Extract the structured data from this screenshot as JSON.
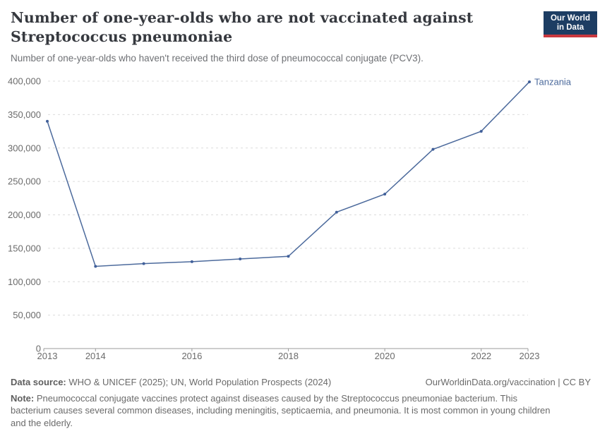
{
  "header": {
    "title_line1": "Number of one-year-olds who are not vaccinated against",
    "title_line2": "Streptococcus pneumoniae",
    "subtitle": "Number of one-year-olds who haven't received the third dose of pneumococcal conjugate (PCV3)."
  },
  "logo": {
    "line1": "Our World",
    "line2": "in Data"
  },
  "chart_data": {
    "type": "line",
    "title": "Number of one-year-olds who are not vaccinated against Streptococcus pneumoniae",
    "subtitle": "Number of one-year-olds who haven't received the third dose of pneumococcal conjugate (PCV3).",
    "xlabel": "",
    "ylabel": "",
    "xlim": [
      2013,
      2023
    ],
    "ylim": [
      0,
      400000
    ],
    "grid": "horizontal-dashed",
    "legend_position": "end-of-line-label",
    "series": [
      {
        "name": "Tanzania",
        "x": [
          2013,
          2014,
          2015,
          2016,
          2017,
          2018,
          2019,
          2020,
          2021,
          2022,
          2023
        ],
        "values": [
          340000,
          123000,
          127000,
          130000,
          134000,
          138000,
          204000,
          231000,
          298000,
          325000,
          399000
        ]
      }
    ],
    "x_axis": {
      "tick_label_years": [
        2013,
        2014,
        2016,
        2018,
        2020,
        2022,
        2023
      ],
      "tick_mark_years": [
        2014,
        2016,
        2018,
        2020,
        2022
      ]
    },
    "y_axis": {
      "ticks": [
        0,
        50000,
        100000,
        150000,
        200000,
        250000,
        300000,
        350000,
        400000
      ]
    },
    "colors": {
      "line": "#4c6a9c",
      "marker": "#41609a",
      "grid": "#dcdcdc",
      "axis": "#9b9b9b",
      "tick_text": "#6b6b6b",
      "logo_navy": "#1d3d63",
      "logo_red": "#c9383f"
    }
  },
  "footer": {
    "source_label": "Data source:",
    "source_text": " WHO & UNICEF (2025); UN, World Population Prospects (2024)",
    "link_text": "OurWorldinData.org/vaccination | CC BY",
    "note_label": "Note:",
    "note_text": " Pneumococcal conjugate vaccines protect against diseases caused by the Streptococcus pneumoniae bacterium. This bacterium causes several common diseases, including meningitis, septicaemia, and pneumonia. It is most common in young children and the elderly."
  }
}
